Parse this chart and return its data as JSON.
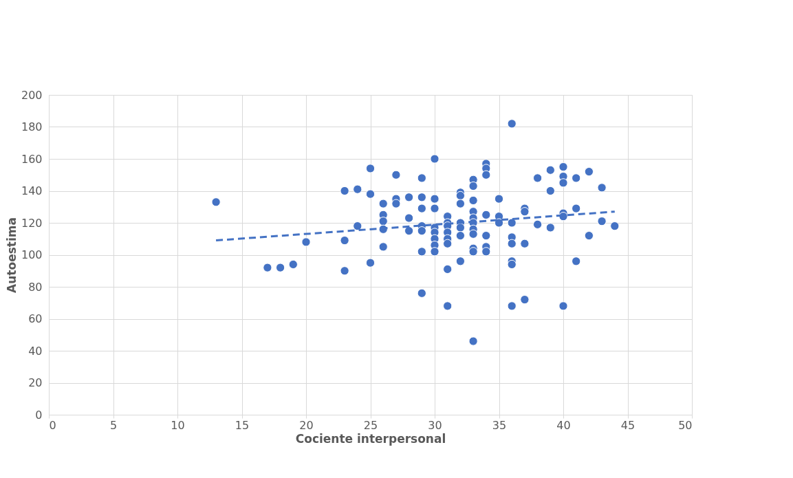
{
  "chart_data": {
    "type": "scatter",
    "xlabel": "Cociente interpersonal",
    "ylabel": "Autoestima",
    "xlim": [
      0,
      50
    ],
    "ylim": [
      0,
      200
    ],
    "xticks": [
      0,
      5,
      10,
      15,
      20,
      25,
      30,
      35,
      40,
      45,
      50
    ],
    "yticks": [
      0,
      20,
      40,
      60,
      80,
      100,
      120,
      140,
      160,
      180,
      200
    ],
    "grid": true,
    "marker": "circle",
    "series": [
      {
        "color": "#4472c4",
        "x": [
          13,
          17,
          18,
          19,
          20,
          23,
          23,
          23,
          24,
          24,
          25,
          25,
          25,
          26,
          26,
          26,
          26,
          26,
          27,
          27,
          27,
          28,
          28,
          28,
          29,
          29,
          29,
          29,
          29,
          29,
          29,
          30,
          30,
          30,
          30,
          30,
          30,
          30,
          30,
          31,
          31,
          31,
          31,
          31,
          31,
          31,
          31,
          32,
          32,
          32,
          32,
          32,
          32,
          32,
          33,
          33,
          33,
          33,
          33,
          33,
          33,
          33,
          33,
          33,
          33,
          34,
          34,
          34,
          34,
          34,
          34,
          34,
          35,
          35,
          35,
          36,
          36,
          36,
          36,
          36,
          36,
          36,
          37,
          37,
          37,
          37,
          38,
          38,
          39,
          39,
          39,
          40,
          40,
          40,
          40,
          40,
          40,
          41,
          41,
          41,
          42,
          42,
          43,
          43,
          44
        ],
        "values": [
          133,
          92,
          92,
          94,
          108,
          140,
          109,
          90,
          141,
          118,
          154,
          138,
          95,
          132,
          125,
          121,
          116,
          105,
          150,
          135,
          132,
          136,
          123,
          115,
          148,
          136,
          129,
          118,
          115,
          102,
          76,
          160,
          135,
          129,
          117,
          114,
          110,
          106,
          102,
          124,
          120,
          118,
          114,
          110,
          107,
          91,
          68,
          139,
          137,
          132,
          120,
          117,
          112,
          96,
          147,
          143,
          134,
          127,
          123,
          120,
          116,
          113,
          104,
          102,
          46,
          157,
          154,
          150,
          125,
          112,
          105,
          102,
          135,
          124,
          120,
          182,
          120,
          111,
          107,
          96,
          94,
          68,
          129,
          127,
          107,
          72,
          148,
          119,
          153,
          140,
          117,
          155,
          149,
          145,
          126,
          124,
          68,
          148,
          129,
          96,
          152,
          112,
          142,
          121,
          118
        ]
      },
      {
        "type": "line",
        "color": "#4472c4",
        "line_style": "dashed",
        "marker": "none",
        "x": [
          13,
          44
        ],
        "values": [
          109,
          127
        ]
      }
    ]
  }
}
